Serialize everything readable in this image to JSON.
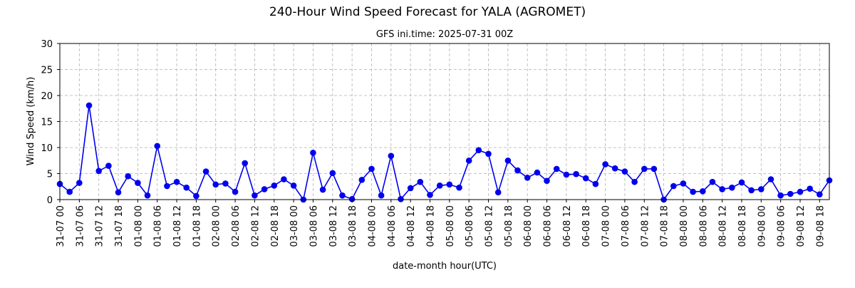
{
  "chart_data": {
    "type": "line",
    "title": "240-Hour Wind Speed Forecast for YALA (AGROMET)",
    "subtitle": "GFS ini.time: 2025-07-31 00Z",
    "xlabel": "date-month hour(UTC)",
    "ylabel": "Wind Speed (km/h)",
    "ylim": [
      0,
      30
    ],
    "yticks": [
      0,
      5,
      10,
      15,
      20,
      25,
      30
    ],
    "xticks": [
      "31-07 00",
      "31-07 06",
      "31-07 12",
      "31-07 18",
      "01-08 00",
      "01-08 06",
      "01-08 12",
      "01-08 18",
      "02-08 00",
      "02-08 06",
      "02-08 12",
      "02-08 18",
      "03-08 00",
      "03-08 06",
      "03-08 12",
      "03-08 18",
      "04-08 00",
      "04-08 06",
      "04-08 12",
      "04-08 18",
      "05-08 00",
      "05-08 06",
      "05-08 12",
      "05-08 18",
      "06-08 00",
      "06-08 06",
      "06-08 12",
      "06-08 18",
      "07-08 00",
      "07-08 06",
      "07-08 12",
      "07-08 18",
      "08-08 00",
      "08-08 06",
      "08-08 12",
      "08-08 18",
      "09-08 00",
      "09-08 06",
      "09-08 12",
      "09-08 18"
    ],
    "grid": true,
    "series": [
      {
        "color": "#0000ee",
        "x_step_hours": 3,
        "values": [
          3.0,
          1.5,
          3.2,
          18.1,
          5.5,
          6.5,
          1.4,
          4.5,
          3.2,
          0.8,
          10.3,
          2.6,
          3.4,
          2.3,
          0.7,
          5.4,
          2.9,
          3.1,
          1.5,
          7.0,
          0.8,
          2.0,
          2.7,
          3.9,
          2.7,
          0.0,
          9.0,
          1.9,
          5.1,
          0.8,
          0.1,
          3.8,
          5.9,
          0.8,
          8.4,
          0.1,
          2.2,
          3.4,
          0.9,
          2.7,
          2.9,
          2.3,
          7.5,
          9.5,
          8.8,
          1.4,
          7.5,
          5.6,
          4.2,
          5.2,
          3.6,
          5.9,
          4.8,
          4.9,
          4.1,
          3.0,
          6.8,
          6.0,
          5.4,
          3.4,
          5.9,
          5.9,
          0.0,
          2.6,
          3.1,
          1.5,
          1.6,
          3.4,
          2.0,
          2.3,
          3.3,
          1.8,
          2.0,
          3.9,
          0.8,
          1.1,
          1.5,
          2.1,
          1.0,
          3.7
        ]
      }
    ]
  }
}
